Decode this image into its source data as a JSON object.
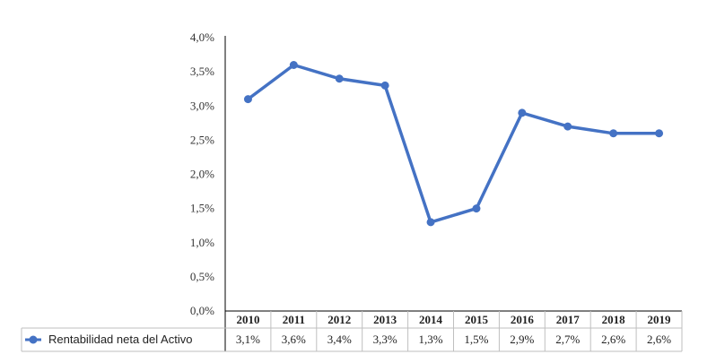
{
  "chart_data": {
    "type": "line",
    "categories": [
      "2010",
      "2011",
      "2012",
      "2013",
      "2014",
      "2015",
      "2016",
      "2017",
      "2018",
      "2019"
    ],
    "series": [
      {
        "name": "Rentabilidad neta del Activo",
        "values": [
          3.1,
          3.6,
          3.4,
          3.3,
          1.3,
          1.5,
          2.9,
          2.7,
          2.6,
          2.6
        ],
        "labels": [
          "3,1%",
          "3,6%",
          "3,4%",
          "3,3%",
          "1,3%",
          "1,5%",
          "2,9%",
          "2,7%",
          "2,6%",
          "2,6%"
        ],
        "color": "#4472C4"
      }
    ],
    "yticks": [
      "0,0%",
      "0,5%",
      "1,0%",
      "1,5%",
      "2,0%",
      "2,5%",
      "3,0%",
      "3,5%",
      "4,0%"
    ],
    "ylim": [
      0,
      4
    ],
    "title": "",
    "xlabel": "",
    "ylabel": "",
    "grid": false,
    "legend": "data-table-left"
  }
}
